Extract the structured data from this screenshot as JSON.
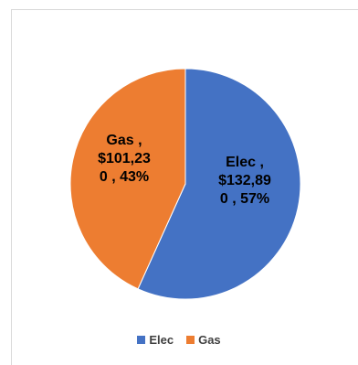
{
  "chart_data": {
    "type": "pie",
    "title": "",
    "legend_position": "bottom",
    "slices": [
      {
        "name": "Elec",
        "value": 132890,
        "percent": 57,
        "color": "#4472c4",
        "label_lines": [
          "Elec ,",
          "$132,89",
          "0 , 57%"
        ]
      },
      {
        "name": "Gas",
        "value": 101230,
        "percent": 43,
        "color": "#ed7d31",
        "label_lines": [
          "Gas ,",
          "$101,23",
          "0 , 43%"
        ]
      }
    ]
  }
}
